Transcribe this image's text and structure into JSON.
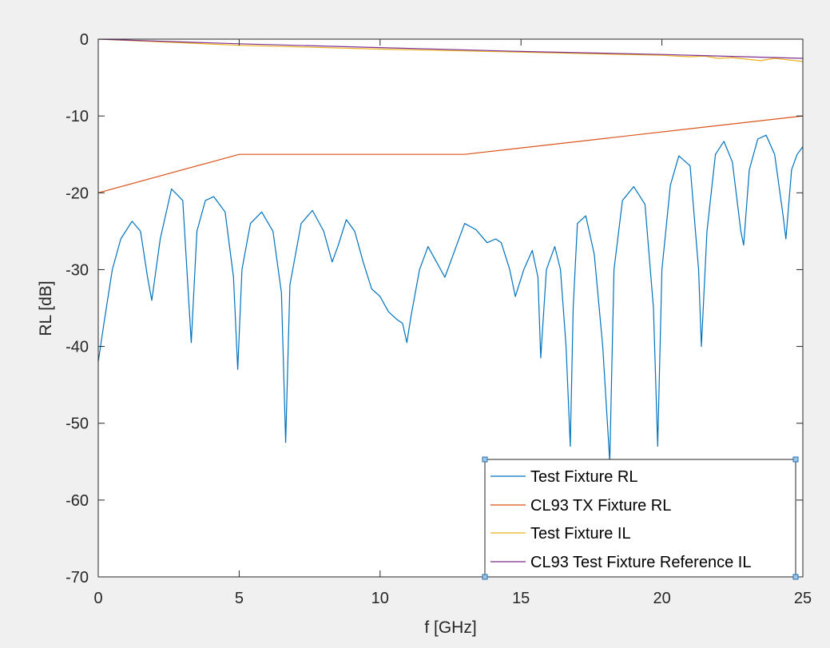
{
  "chart_data": {
    "type": "line",
    "title": "",
    "xlabel": "f [GHz]",
    "ylabel": "RL [dB]",
    "xlim": [
      0,
      25
    ],
    "ylim": [
      -70,
      0
    ],
    "x_ticks": [
      0,
      5,
      10,
      15,
      20,
      25
    ],
    "y_ticks": [
      0,
      -10,
      -20,
      -30,
      -40,
      -50,
      -60,
      -70
    ],
    "grid": false,
    "legend_position": "bottom-right",
    "series": [
      {
        "name": "Test Fixture RL",
        "color": "#0072bd",
        "x": [
          0,
          0.2,
          0.5,
          0.8,
          1.2,
          1.5,
          1.75,
          1.9,
          2.2,
          2.6,
          3.0,
          3.3,
          3.5,
          3.8,
          4.1,
          4.5,
          4.8,
          4.95,
          5.1,
          5.4,
          5.8,
          6.2,
          6.5,
          6.65,
          6.8,
          7.2,
          7.6,
          8.0,
          8.3,
          8.5,
          8.8,
          9.1,
          9.4,
          9.7,
          10.0,
          10.3,
          10.6,
          10.8,
          10.95,
          11.1,
          11.4,
          11.7,
          12.0,
          12.3,
          12.6,
          13.0,
          13.4,
          13.8,
          14.1,
          14.3,
          14.6,
          14.8,
          15.1,
          15.4,
          15.6,
          15.7,
          15.9,
          16.2,
          16.4,
          16.6,
          16.75,
          16.85,
          17.0,
          17.3,
          17.6,
          17.9,
          18.15,
          18.3,
          18.6,
          19.0,
          19.4,
          19.7,
          19.85,
          20.0,
          20.3,
          20.6,
          21.0,
          21.3,
          21.4,
          21.6,
          21.9,
          22.2,
          22.5,
          22.8,
          22.9,
          23.1,
          23.4,
          23.7,
          24.0,
          24.3,
          24.4,
          24.6,
          24.8,
          25.0
        ],
        "values": [
          -42,
          -37,
          -30,
          -26,
          -23.7,
          -25,
          -31,
          -34,
          -26,
          -19.5,
          -21,
          -39.5,
          -25,
          -21,
          -20.5,
          -22.5,
          -31,
          -43,
          -30,
          -24,
          -22.5,
          -25,
          -33,
          -52.5,
          -32,
          -24,
          -22.3,
          -25,
          -29,
          -27,
          -23.5,
          -25,
          -29,
          -32.5,
          -33.5,
          -35.5,
          -36.5,
          -37,
          -39.5,
          -36,
          -30,
          -27,
          -29,
          -31,
          -28,
          -24,
          -24.8,
          -26.5,
          -26,
          -26.5,
          -30,
          -33.5,
          -30,
          -27.5,
          -31,
          -41.5,
          -30,
          -27,
          -30,
          -40,
          -53,
          -35,
          -24,
          -23,
          -28,
          -40,
          -55,
          -30,
          -21,
          -19.2,
          -21.5,
          -35,
          -53,
          -30,
          -19,
          -15.2,
          -16.5,
          -30,
          -40,
          -25,
          -15,
          -13.3,
          -16,
          -25,
          -26.8,
          -17,
          -13,
          -12.5,
          -15,
          -23,
          -26,
          -17,
          -15,
          -14
        ]
      },
      {
        "name": "CL93 TX Fixture RL",
        "color": "#d95319",
        "x": [
          0,
          5,
          13,
          25
        ],
        "values": [
          -20,
          -15,
          -15,
          -10
        ]
      },
      {
        "name": "Test Fixture IL",
        "color": "#edb120",
        "x": [
          0,
          5,
          10,
          15,
          20,
          20.5,
          21,
          21.5,
          22,
          22.5,
          23,
          23.5,
          24,
          24.5,
          25
        ],
        "values": [
          0,
          -0.8,
          -1.3,
          -1.7,
          -2.1,
          -2.2,
          -2.3,
          -2.2,
          -2.5,
          -2.4,
          -2.6,
          -2.8,
          -2.5,
          -2.7,
          -2.9
        ]
      },
      {
        "name": "CL93 Test Fixture Reference IL",
        "color": "#7e2f8e",
        "x": [
          0,
          5,
          10,
          15,
          20,
          25
        ],
        "values": [
          0,
          -0.6,
          -1.1,
          -1.6,
          -2.0,
          -2.5
        ]
      }
    ]
  }
}
